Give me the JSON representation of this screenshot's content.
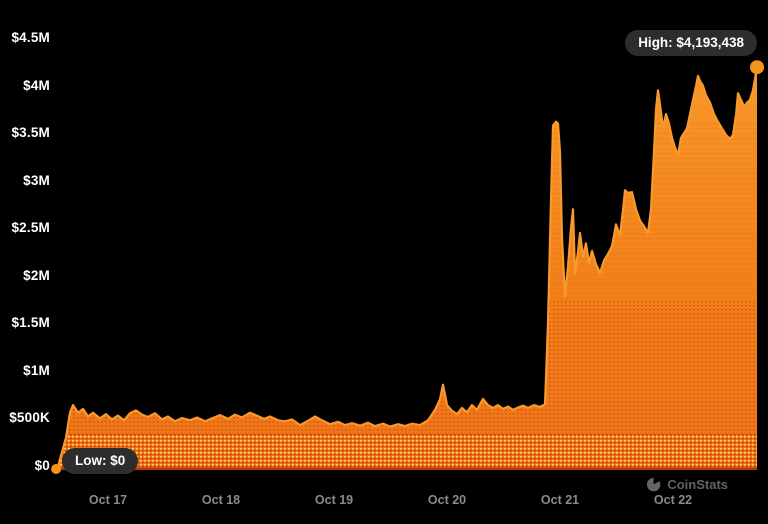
{
  "app": {
    "watermark": "CoinStats"
  },
  "colors": {
    "background": "#000000",
    "line": "#F8992B",
    "area_top": "#F8982A",
    "area_mid": "#F28119",
    "area_bottom": "#EE7418",
    "baseline": "#B5380E",
    "dot_red": "#C22C10",
    "dot_yellow": "#FFDD55",
    "stripe": "#E2661A",
    "marker": "#F6941E",
    "y_axis_text": "#FFFFFF",
    "x_axis_text": "#8A8A8A",
    "badge_bg": "#2D2D2D",
    "badge_text": "#FFFFFF",
    "watermark_text": "#636363"
  },
  "chart_data": {
    "type": "area",
    "title": "",
    "xlabel": "",
    "ylabel": "",
    "grid": false,
    "legend": false,
    "ylim": [
      0,
      4500000
    ],
    "y_ticks": [
      {
        "label": "$0",
        "value": 0
      },
      {
        "label": "$500K",
        "value": 500000
      },
      {
        "label": "$1M",
        "value": 1000000
      },
      {
        "label": "$1.5M",
        "value": 1500000
      },
      {
        "label": "$2M",
        "value": 2000000
      },
      {
        "label": "$2.5M",
        "value": 2500000
      },
      {
        "label": "$3M",
        "value": 3000000
      },
      {
        "label": "$3.5M",
        "value": 3500000
      },
      {
        "label": "$4M",
        "value": 4000000
      },
      {
        "label": "$4.5M",
        "value": 4500000
      }
    ],
    "x_ticks": [
      {
        "label": "Oct 17",
        "day": 0
      },
      {
        "label": "Oct 18",
        "day": 1
      },
      {
        "label": "Oct 19",
        "day": 2
      },
      {
        "label": "Oct 20",
        "day": 3
      },
      {
        "label": "Oct 21",
        "day": 4
      },
      {
        "label": "Oct 22",
        "day": 5
      }
    ],
    "high": {
      "label": "High: $4,193,438",
      "value": 4193438
    },
    "low": {
      "label": "Low: $0",
      "value": 0
    },
    "series": [
      {
        "name": "price_usd",
        "points": [
          [
            -0.442,
            0
          ],
          [
            -0.372,
            300000
          ],
          [
            -0.336,
            560000
          ],
          [
            -0.31,
            640000
          ],
          [
            -0.265,
            560000
          ],
          [
            -0.221,
            600000
          ],
          [
            -0.177,
            520000
          ],
          [
            -0.133,
            560000
          ],
          [
            -0.071,
            500000
          ],
          [
            -0.018,
            545000
          ],
          [
            0.035,
            490000
          ],
          [
            0.088,
            530000
          ],
          [
            0.142,
            480000
          ],
          [
            0.195,
            555000
          ],
          [
            0.248,
            585000
          ],
          [
            0.301,
            540000
          ],
          [
            0.354,
            515000
          ],
          [
            0.416,
            555000
          ],
          [
            0.478,
            490000
          ],
          [
            0.531,
            520000
          ],
          [
            0.593,
            470000
          ],
          [
            0.655,
            505000
          ],
          [
            0.726,
            480000
          ],
          [
            0.788,
            510000
          ],
          [
            0.858,
            470000
          ],
          [
            0.92,
            500000
          ],
          [
            0.991,
            535000
          ],
          [
            1.062,
            495000
          ],
          [
            1.124,
            540000
          ],
          [
            1.186,
            510000
          ],
          [
            1.257,
            560000
          ],
          [
            1.327,
            525000
          ],
          [
            1.381,
            495000
          ],
          [
            1.434,
            520000
          ],
          [
            1.504,
            480000
          ],
          [
            1.566,
            470000
          ],
          [
            1.628,
            490000
          ],
          [
            1.699,
            430000
          ],
          [
            1.77,
            475000
          ],
          [
            1.832,
            520000
          ],
          [
            1.894,
            480000
          ],
          [
            1.965,
            440000
          ],
          [
            2.035,
            465000
          ],
          [
            2.097,
            430000
          ],
          [
            2.159,
            450000
          ],
          [
            2.23,
            425000
          ],
          [
            2.301,
            455000
          ],
          [
            2.363,
            420000
          ],
          [
            2.434,
            445000
          ],
          [
            2.496,
            415000
          ],
          [
            2.566,
            440000
          ],
          [
            2.628,
            420000
          ],
          [
            2.69,
            445000
          ],
          [
            2.761,
            430000
          ],
          [
            2.832,
            480000
          ],
          [
            2.894,
            590000
          ],
          [
            2.938,
            700000
          ],
          [
            2.965,
            855000
          ],
          [
            3.0,
            640000
          ],
          [
            3.044,
            580000
          ],
          [
            3.088,
            545000
          ],
          [
            3.133,
            610000
          ],
          [
            3.177,
            565000
          ],
          [
            3.221,
            640000
          ],
          [
            3.265,
            590000
          ],
          [
            3.319,
            705000
          ],
          [
            3.363,
            640000
          ],
          [
            3.407,
            610000
          ],
          [
            3.451,
            640000
          ],
          [
            3.496,
            600000
          ],
          [
            3.54,
            625000
          ],
          [
            3.584,
            590000
          ],
          [
            3.628,
            615000
          ],
          [
            3.673,
            635000
          ],
          [
            3.717,
            610000
          ],
          [
            3.77,
            640000
          ],
          [
            3.823,
            620000
          ],
          [
            3.867,
            650000
          ],
          [
            3.894,
            1500000
          ],
          [
            3.92,
            2800000
          ],
          [
            3.938,
            3580000
          ],
          [
            3.965,
            3620000
          ],
          [
            3.982,
            3600000
          ],
          [
            4.0,
            3300000
          ],
          [
            4.018,
            2400000
          ],
          [
            4.044,
            1780000
          ],
          [
            4.071,
            2100000
          ],
          [
            4.097,
            2500000
          ],
          [
            4.115,
            2700000
          ],
          [
            4.133,
            2020000
          ],
          [
            4.159,
            2250000
          ],
          [
            4.177,
            2450000
          ],
          [
            4.204,
            2200000
          ],
          [
            4.23,
            2340000
          ],
          [
            4.257,
            2130000
          ],
          [
            4.283,
            2260000
          ],
          [
            4.319,
            2120000
          ],
          [
            4.354,
            2030000
          ],
          [
            4.389,
            2160000
          ],
          [
            4.425,
            2230000
          ],
          [
            4.46,
            2310000
          ],
          [
            4.496,
            2540000
          ],
          [
            4.531,
            2420000
          ],
          [
            4.558,
            2700000
          ],
          [
            4.575,
            2900000
          ],
          [
            4.602,
            2870000
          ],
          [
            4.637,
            2880000
          ],
          [
            4.673,
            2700000
          ],
          [
            4.708,
            2580000
          ],
          [
            4.743,
            2520000
          ],
          [
            4.779,
            2450000
          ],
          [
            4.805,
            2700000
          ],
          [
            4.832,
            3300000
          ],
          [
            4.85,
            3750000
          ],
          [
            4.867,
            3950000
          ],
          [
            4.885,
            3800000
          ],
          [
            4.912,
            3550000
          ],
          [
            4.938,
            3700000
          ],
          [
            4.965,
            3600000
          ],
          [
            4.991,
            3450000
          ],
          [
            5.018,
            3350000
          ],
          [
            5.044,
            3270000
          ],
          [
            5.071,
            3450000
          ],
          [
            5.097,
            3500000
          ],
          [
            5.124,
            3550000
          ],
          [
            5.15,
            3700000
          ],
          [
            5.177,
            3850000
          ],
          [
            5.204,
            4000000
          ],
          [
            5.221,
            4100000
          ],
          [
            5.239,
            4050000
          ],
          [
            5.265,
            4000000
          ],
          [
            5.292,
            3900000
          ],
          [
            5.327,
            3820000
          ],
          [
            5.363,
            3700000
          ],
          [
            5.398,
            3620000
          ],
          [
            5.434,
            3550000
          ],
          [
            5.469,
            3480000
          ],
          [
            5.504,
            3440000
          ],
          [
            5.531,
            3480000
          ],
          [
            5.558,
            3700000
          ],
          [
            5.575,
            3920000
          ],
          [
            5.602,
            3850000
          ],
          [
            5.628,
            3780000
          ],
          [
            5.655,
            3820000
          ],
          [
            5.681,
            3850000
          ],
          [
            5.708,
            3950000
          ],
          [
            5.743,
            4193438
          ]
        ]
      }
    ]
  }
}
